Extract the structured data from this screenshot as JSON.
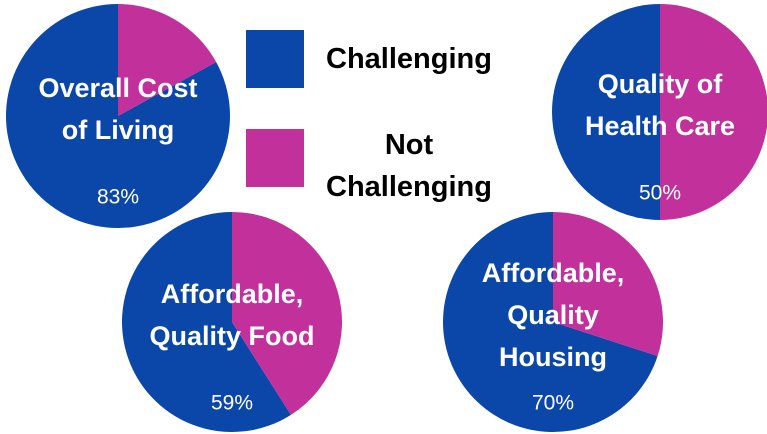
{
  "chart_data": [
    {
      "type": "pie",
      "title": [
        "Overall Cost",
        "of Living"
      ],
      "categories": [
        "Challenging",
        "Not Challenging"
      ],
      "values": [
        83,
        17
      ],
      "value_labels": [
        "83%",
        null
      ],
      "colors": [
        "#0b47a9",
        "#c2309b"
      ]
    },
    {
      "type": "pie",
      "title": [
        "Quality of",
        "Health Care"
      ],
      "categories": [
        "Challenging",
        "Not Challenging"
      ],
      "values": [
        50,
        50
      ],
      "value_labels": [
        "50%",
        null
      ],
      "colors": [
        "#0b47a9",
        "#c2309b"
      ]
    },
    {
      "type": "pie",
      "title": [
        "Affordable,",
        "Quality Food"
      ],
      "categories": [
        "Challenging",
        "Not Challenging"
      ],
      "values": [
        59,
        41
      ],
      "value_labels": [
        "59%",
        null
      ],
      "colors": [
        "#0b47a9",
        "#c2309b"
      ]
    },
    {
      "type": "pie",
      "title": [
        "Affordable,",
        "Quality",
        "Housing"
      ],
      "categories": [
        "Challenging",
        "Not Challenging"
      ],
      "values": [
        70,
        30
      ],
      "value_labels": [
        "70%",
        null
      ],
      "colors": [
        "#0b47a9",
        "#c2309b"
      ]
    }
  ]
}
